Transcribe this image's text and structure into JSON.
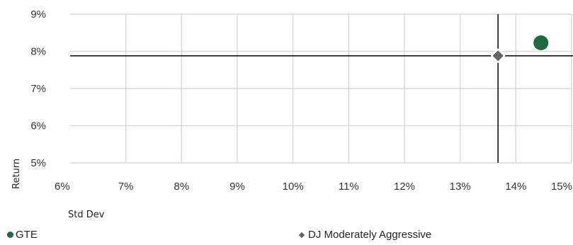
{
  "chart_data": {
    "type": "scatter",
    "xlabel": "Std Dev",
    "ylabel": "Return",
    "xlim": [
      6,
      15
    ],
    "ylim": [
      5,
      9
    ],
    "x_ticks": [
      "6%",
      "7%",
      "8%",
      "9%",
      "10%",
      "11%",
      "12%",
      "13%",
      "14%",
      "15%"
    ],
    "y_ticks": [
      "5%",
      "6%",
      "7%",
      "8%",
      "9%"
    ],
    "grid": true,
    "legend_position": "bottom",
    "series": [
      {
        "name": "GTE",
        "marker": "circle",
        "color": "#1f6b3f",
        "x": 14.45,
        "y": 8.23
      },
      {
        "name": "DJ Moderately Aggressive",
        "marker": "diamond",
        "color": "#666666",
        "x": 13.68,
        "y": 7.88,
        "crosshair": true
      }
    ]
  }
}
